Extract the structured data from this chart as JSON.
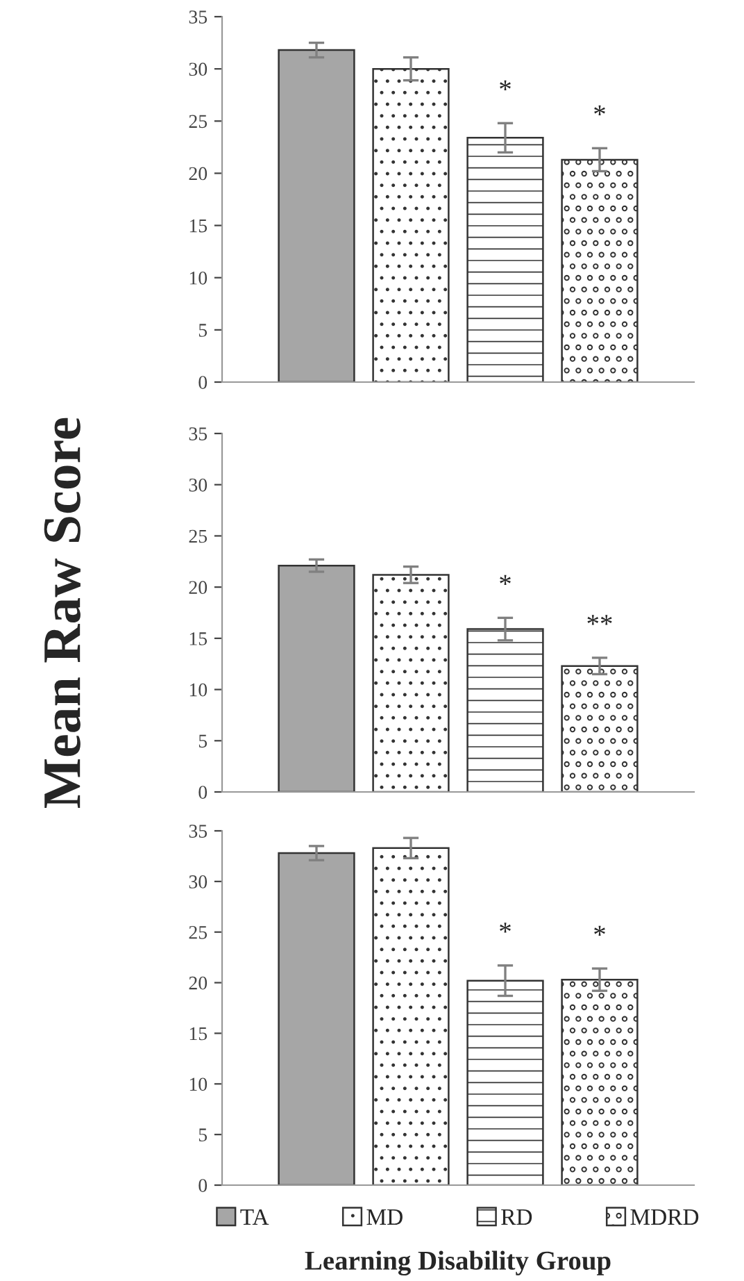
{
  "chart_data": [
    {
      "type": "bar",
      "categories": [
        null
      ],
      "ylim": [
        0,
        35
      ],
      "yticks": [
        0,
        5,
        10,
        15,
        20,
        25,
        30,
        35
      ],
      "grid": false,
      "legend": false,
      "series": [
        {
          "color": "#a6a6a6",
          "values": [
            31.8
          ],
          "errors": [
            0.7
          ],
          "value_labels": [
            null
          ]
        },
        {
          "color": "#333333",
          "values": [
            30.0
          ],
          "errors": [
            1.1
          ],
          "value_labels": [
            null
          ]
        },
        {
          "color": "#333333",
          "values": [
            23.4
          ],
          "errors": [
            1.4
          ],
          "value_labels": [
            "*"
          ]
        },
        {
          "color": "#333333",
          "values": [
            21.3
          ],
          "errors": [
            1.1
          ],
          "value_labels": [
            "*"
          ]
        }
      ]
    },
    {
      "type": "bar",
      "categories": [
        null
      ],
      "ylim": [
        0,
        35
      ],
      "yticks": [
        0,
        5,
        10,
        15,
        20,
        25,
        30,
        35
      ],
      "grid": false,
      "legend": false,
      "ylabel": "Mean Raw Score",
      "series": [
        {
          "color": "#a6a6a6",
          "values": [
            22.1
          ],
          "errors": [
            0.6
          ],
          "value_labels": [
            null
          ]
        },
        {
          "color": "#333333",
          "values": [
            21.2
          ],
          "errors": [
            0.8
          ],
          "value_labels": [
            null
          ]
        },
        {
          "color": "#333333",
          "values": [
            15.9
          ],
          "errors": [
            1.1
          ],
          "value_labels": [
            "*"
          ]
        },
        {
          "color": "#333333",
          "values": [
            12.3
          ],
          "errors": [
            0.8
          ],
          "value_labels": [
            "**"
          ]
        }
      ]
    },
    {
      "type": "bar",
      "categories": [
        null
      ],
      "ylim": [
        0,
        35
      ],
      "yticks": [
        0,
        5,
        10,
        15,
        20,
        25,
        30,
        35
      ],
      "grid": false,
      "legend": "bottom",
      "xlabel": "Learning Disability Group",
      "series": [
        {
          "name": "TA",
          "color": "#a6a6a6",
          "values": [
            32.8
          ],
          "errors": [
            0.7
          ],
          "value_labels": [
            null
          ]
        },
        {
          "name": "MD",
          "color": "#333333",
          "values": [
            33.3
          ],
          "errors": [
            1.0
          ],
          "value_labels": [
            null
          ]
        },
        {
          "name": "RD",
          "color": "#333333",
          "values": [
            20.2
          ],
          "errors": [
            1.5
          ],
          "value_labels": [
            "*"
          ]
        },
        {
          "name": "MDRD",
          "color": "#333333",
          "values": [
            20.3
          ],
          "errors": [
            1.1
          ],
          "value_labels": [
            "*"
          ]
        }
      ]
    }
  ]
}
